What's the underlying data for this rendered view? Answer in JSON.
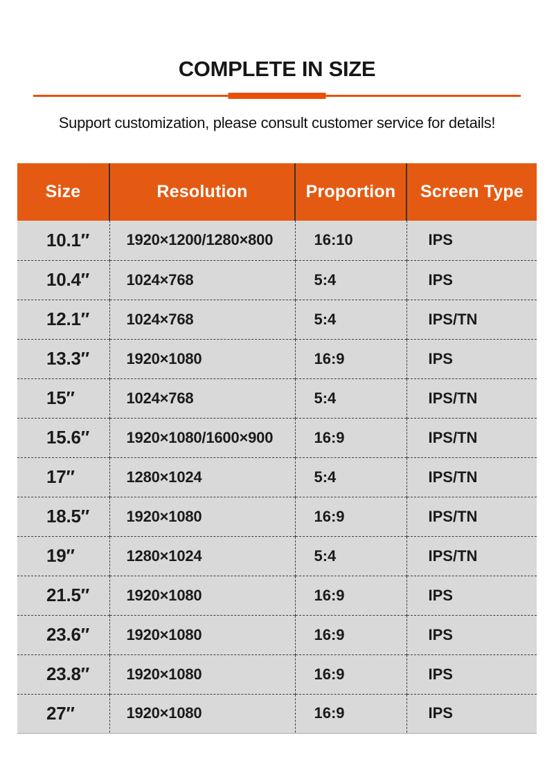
{
  "header": {
    "title": "COMPLETE IN SIZE",
    "subtitle": "Support customization, please consult customer service for details!"
  },
  "colors": {
    "accent_orange": "#e8500a",
    "header_orange": "#e45a12",
    "row_gray": "#d9d9d9",
    "dash_gray": "#3f3f3f",
    "text_dark": "#1a1a1a"
  },
  "table": {
    "columns": [
      "Size",
      "Resolution",
      "Proportion",
      "Screen Type"
    ],
    "rows": [
      {
        "size": "10.1″",
        "resolution": "1920×1200/1280×800",
        "proportion": "16:10",
        "screen_type": "IPS"
      },
      {
        "size": "10.4″",
        "resolution": "1024×768",
        "proportion": "5:4",
        "screen_type": "IPS"
      },
      {
        "size": "12.1″",
        "resolution": "1024×768",
        "proportion": "5:4",
        "screen_type": "IPS/TN"
      },
      {
        "size": "13.3″",
        "resolution": "1920×1080",
        "proportion": "16:9",
        "screen_type": "IPS"
      },
      {
        "size": "15″",
        "resolution": "1024×768",
        "proportion": "5:4",
        "screen_type": "IPS/TN"
      },
      {
        "size": "15.6″",
        "resolution": "1920×1080/1600×900",
        "proportion": "16:9",
        "screen_type": "IPS/TN"
      },
      {
        "size": "17″",
        "resolution": "1280×1024",
        "proportion": "5:4",
        "screen_type": "IPS/TN"
      },
      {
        "size": "18.5″",
        "resolution": "1920×1080",
        "proportion": "16:9",
        "screen_type": "IPS/TN"
      },
      {
        "size": "19″",
        "resolution": "1280×1024",
        "proportion": "5:4",
        "screen_type": "IPS/TN"
      },
      {
        "size": "21.5″",
        "resolution": "1920×1080",
        "proportion": "16:9",
        "screen_type": "IPS"
      },
      {
        "size": "23.6″",
        "resolution": "1920×1080",
        "proportion": "16:9",
        "screen_type": "IPS"
      },
      {
        "size": "23.8″",
        "resolution": "1920×1080",
        "proportion": "16:9",
        "screen_type": "IPS"
      },
      {
        "size": "27″",
        "resolution": "1920×1080",
        "proportion": "16:9",
        "screen_type": "IPS"
      }
    ]
  }
}
